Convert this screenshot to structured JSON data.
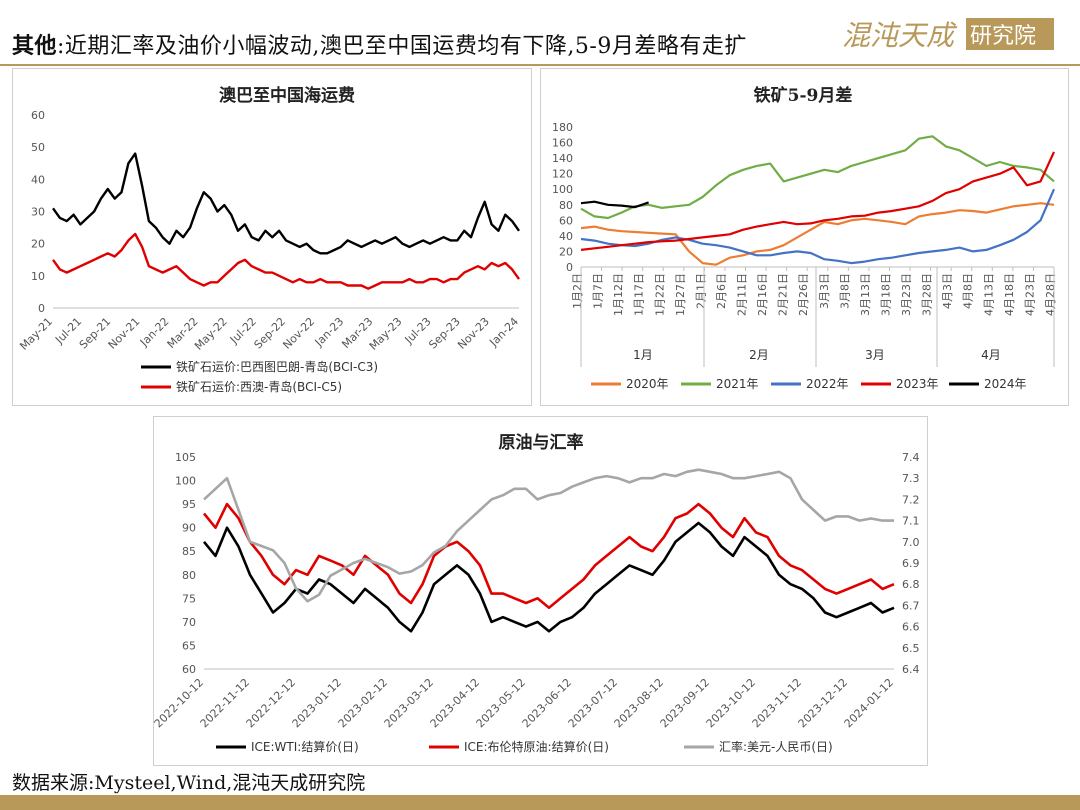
{
  "header": {
    "title_label": "其他",
    "title_text": ":近期汇率及油价小幅波动,澳巴至中国运费均有下降,5-9月差略有走扩",
    "logo_text": "混沌天成研究院",
    "brand_color": "#b8995a"
  },
  "footer": {
    "source": "数据来源:Mysteel,Wind,混沌天成研究院"
  },
  "chart_data": [
    {
      "type": "line",
      "title": "澳巴至中国海运费",
      "ylim": [
        0,
        60
      ],
      "yticks": [
        "0",
        "10",
        "20",
        "30",
        "40",
        "50",
        "60"
      ],
      "xticks": [
        "May-21",
        "Jul-21",
        "Sep-21",
        "Nov-21",
        "Jan-22",
        "Mar-22",
        "May-22",
        "Jul-22",
        "Sep-22",
        "Nov-22",
        "Jan-23",
        "Mar-23",
        "May-23",
        "Jul-23",
        "Sep-23",
        "Nov-23",
        "Jan-24"
      ],
      "legend_position": "bottom",
      "grid": false,
      "series": [
        {
          "name": "铁矿石运价:巴西图巴朗-青岛(BCI-C3)",
          "color": "#000000",
          "values": [
            31,
            28,
            27,
            29,
            26,
            28,
            30,
            34,
            37,
            34,
            36,
            45,
            48,
            38,
            27,
            25,
            22,
            20,
            24,
            22,
            25,
            31,
            36,
            34,
            30,
            32,
            29,
            24,
            26,
            22,
            21,
            24,
            22,
            24,
            21,
            20,
            19,
            20,
            18,
            17,
            17,
            18,
            19,
            21,
            20,
            19,
            20,
            21,
            20,
            21,
            22,
            20,
            19,
            20,
            21,
            20,
            21,
            22,
            21,
            21,
            24,
            22,
            28,
            33,
            26,
            24,
            29,
            27,
            24
          ]
        },
        {
          "name": "铁矿石运价:西澳-青岛(BCI-C5)",
          "color": "#e00000",
          "values": [
            15,
            12,
            11,
            12,
            13,
            14,
            15,
            16,
            17,
            16,
            18,
            21,
            23,
            19,
            13,
            12,
            11,
            12,
            13,
            11,
            9,
            8,
            7,
            8,
            8,
            10,
            12,
            14,
            15,
            13,
            12,
            11,
            11,
            10,
            9,
            8,
            9,
            8,
            8,
            9,
            8,
            8,
            8,
            7,
            7,
            7,
            6,
            7,
            8,
            8,
            8,
            8,
            9,
            8,
            8,
            9,
            9,
            8,
            9,
            9,
            11,
            12,
            13,
            12,
            14,
            13,
            14,
            12,
            9
          ]
        }
      ]
    },
    {
      "type": "line",
      "title": "铁矿5-9月差",
      "ylim": [
        0,
        180
      ],
      "yticks": [
        "0",
        "20",
        "40",
        "60",
        "80",
        "100",
        "120",
        "140",
        "160",
        "180"
      ],
      "xticks": [
        "1月2日",
        "1月7日",
        "1月12日",
        "1月17日",
        "1月22日",
        "1月27日",
        "2月1日",
        "2月6日",
        "2月11日",
        "2月16日",
        "2月21日",
        "2月26日",
        "3月3日",
        "3月8日",
        "3月13日",
        "3月18日",
        "3月23日",
        "3月28日",
        "4月3日",
        "4月8日",
        "4月13日",
        "4月18日",
        "4月23日",
        "4月28日"
      ],
      "month_labels": [
        "1月",
        "2月",
        "3月",
        "4月"
      ],
      "legend_position": "bottom",
      "grid": false,
      "series": [
        {
          "name": "2020年",
          "color": "#ed7d31",
          "values": [
            50,
            52,
            48,
            46,
            45,
            44,
            43,
            42,
            20,
            5,
            3,
            12,
            15,
            20,
            22,
            28,
            38,
            48,
            58,
            55,
            60,
            62,
            60,
            58,
            55,
            65,
            68,
            70,
            73,
            72,
            70,
            74,
            78,
            80,
            82,
            80
          ]
        },
        {
          "name": "2021年",
          "color": "#70ad47",
          "values": [
            75,
            65,
            63,
            70,
            78,
            80,
            76,
            78,
            80,
            90,
            105,
            118,
            125,
            130,
            133,
            110,
            115,
            120,
            125,
            122,
            130,
            135,
            140,
            145,
            150,
            165,
            168,
            155,
            150,
            140,
            130,
            135,
            130,
            128,
            125,
            110
          ]
        },
        {
          "name": "2022年",
          "color": "#4472c4",
          "values": [
            36,
            34,
            30,
            28,
            27,
            30,
            35,
            38,
            35,
            30,
            28,
            25,
            20,
            15,
            15,
            18,
            20,
            18,
            10,
            8,
            5,
            7,
            10,
            12,
            15,
            18,
            20,
            22,
            25,
            20,
            22,
            28,
            35,
            45,
            60,
            100
          ]
        },
        {
          "name": "2023年",
          "color": "#e00000",
          "values": [
            22,
            24,
            26,
            28,
            30,
            32,
            33,
            34,
            36,
            38,
            40,
            42,
            48,
            52,
            55,
            58,
            55,
            56,
            60,
            62,
            65,
            66,
            70,
            72,
            75,
            78,
            85,
            95,
            100,
            110,
            115,
            120,
            128,
            105,
            110,
            148
          ]
        },
        {
          "name": "2024年",
          "color": "#000000",
          "values": [
            82,
            84,
            80,
            79,
            77,
            83
          ]
        }
      ]
    },
    {
      "type": "line",
      "title": "原油与汇率",
      "ylim": [
        60,
        105
      ],
      "y2lim": [
        6.4,
        7.4
      ],
      "yticks": [
        "60",
        "65",
        "70",
        "75",
        "80",
        "85",
        "90",
        "95",
        "100",
        "105"
      ],
      "y2ticks": [
        "6.4",
        "6.5",
        "6.6",
        "6.7",
        "6.8",
        "6.9",
        "7.0",
        "7.1",
        "7.2",
        "7.3",
        "7.4"
      ],
      "xticks": [
        "2022-10-12",
        "2022-11-12",
        "2022-12-12",
        "2023-01-12",
        "2023-02-12",
        "2023-03-12",
        "2023-04-12",
        "2023-05-12",
        "2023-06-12",
        "2023-07-12",
        "2023-08-12",
        "2023-09-12",
        "2023-10-12",
        "2023-11-12",
        "2023-12-12",
        "2024-01-12"
      ],
      "legend_position": "bottom",
      "grid": false,
      "series": [
        {
          "name": "ICE:WTI:结算价(日)",
          "color": "#000000",
          "axis": "left",
          "values": [
            87,
            84,
            90,
            86,
            80,
            76,
            72,
            74,
            77,
            76,
            79,
            78,
            76,
            74,
            77,
            75,
            73,
            70,
            68,
            72,
            78,
            80,
            82,
            80,
            76,
            70,
            71,
            70,
            69,
            70,
            68,
            70,
            71,
            73,
            76,
            78,
            80,
            82,
            81,
            80,
            83,
            87,
            89,
            91,
            89,
            86,
            84,
            88,
            86,
            84,
            80,
            78,
            77,
            75,
            72,
            71,
            72,
            73,
            74,
            72,
            73
          ]
        },
        {
          "name": "ICE:布伦特原油:结算价(日)",
          "color": "#e00000",
          "axis": "left",
          "values": [
            93,
            90,
            95,
            92,
            87,
            84,
            80,
            78,
            81,
            80,
            84,
            83,
            82,
            80,
            84,
            82,
            80,
            76,
            74,
            78,
            84,
            86,
            87,
            85,
            82,
            76,
            76,
            75,
            74,
            75,
            73,
            75,
            77,
            79,
            82,
            84,
            86,
            88,
            86,
            85,
            88,
            92,
            93,
            95,
            93,
            90,
            88,
            92,
            89,
            88,
            84,
            82,
            81,
            79,
            77,
            76,
            77,
            78,
            79,
            77,
            78
          ]
        },
        {
          "name": "汇率:美元-人民币(日)",
          "color": "#a6a6a6",
          "axis": "right",
          "values": [
            7.2,
            7.25,
            7.3,
            7.15,
            7.0,
            6.98,
            6.96,
            6.9,
            6.78,
            6.72,
            6.75,
            6.84,
            6.87,
            6.9,
            6.92,
            6.9,
            6.88,
            6.85,
            6.86,
            6.89,
            6.95,
            6.98,
            7.05,
            7.1,
            7.15,
            7.2,
            7.22,
            7.25,
            7.25,
            7.2,
            7.22,
            7.23,
            7.26,
            7.28,
            7.3,
            7.31,
            7.3,
            7.28,
            7.3,
            7.3,
            7.32,
            7.31,
            7.33,
            7.34,
            7.33,
            7.32,
            7.3,
            7.3,
            7.31,
            7.32,
            7.33,
            7.3,
            7.2,
            7.15,
            7.1,
            7.12,
            7.12,
            7.1,
            7.11,
            7.1,
            7.1
          ]
        }
      ]
    }
  ]
}
